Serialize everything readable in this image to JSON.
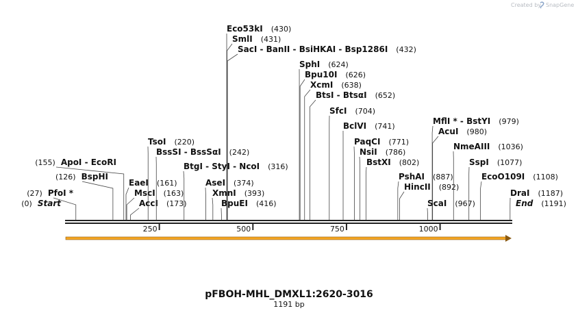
{
  "header": {
    "credit_text": "Created by",
    "brand": "SnapGene"
  },
  "map": {
    "title": "pFBOH-MHL_DMXL1:2620-3016",
    "length_text": "1191 bp",
    "total_bp": 1191,
    "ticks": [
      {
        "value": 250,
        "label": "250"
      },
      {
        "value": 500,
        "label": "500"
      },
      {
        "value": 750,
        "label": "750"
      },
      {
        "value": 1000,
        "label": "1000"
      }
    ],
    "feature": {
      "name": "orf-arrow",
      "start": 1,
      "end": 1191,
      "color": "#f5a623"
    },
    "sites": [
      {
        "name": "Start",
        "pos_label": "(0)",
        "pos": 0,
        "italic": true
      },
      {
        "name": "PfoI *",
        "pos_label": "(27)",
        "pos": 27
      },
      {
        "name": "BspHI",
        "pos_label": "(126)",
        "pos": 126
      },
      {
        "name": "ApoI  - EcoRI",
        "pos_label": "(155)",
        "pos": 155
      },
      {
        "name": "EaeI",
        "pos_label": "(161)",
        "pos": 161
      },
      {
        "name": "MscI",
        "pos_label": "(163)",
        "pos": 163
      },
      {
        "name": "AccI",
        "pos_label": "(173)",
        "pos": 173
      },
      {
        "name": "TsoI",
        "pos_label": "(220)",
        "pos": 220
      },
      {
        "name": "BssSI  - BssSαI",
        "pos_label": "(242)",
        "pos": 242
      },
      {
        "name": "BtgI  - StyI  - NcoI",
        "pos_label": "(316)",
        "pos": 316
      },
      {
        "name": "AseI",
        "pos_label": "(374)",
        "pos": 374
      },
      {
        "name": "XmnI",
        "pos_label": "(393)",
        "pos": 393
      },
      {
        "name": "BpuEI",
        "pos_label": "(416)",
        "pos": 416
      },
      {
        "name": "Eco53kI",
        "pos_label": "(430)",
        "pos": 430
      },
      {
        "name": "SmlI",
        "pos_label": "(431)",
        "pos": 431
      },
      {
        "name": "SacI  - BanII  - BsiHKAI  - Bsp1286I",
        "pos_label": "(432)",
        "pos": 432
      },
      {
        "name": "SphI",
        "pos_label": "(624)",
        "pos": 624
      },
      {
        "name": "Bpu10I",
        "pos_label": "(626)",
        "pos": 626
      },
      {
        "name": "XcmI",
        "pos_label": "(638)",
        "pos": 638
      },
      {
        "name": "BtsI  - BtsαI",
        "pos_label": "(652)",
        "pos": 652
      },
      {
        "name": "SfcI",
        "pos_label": "(704)",
        "pos": 704
      },
      {
        "name": "BclVI",
        "pos_label": "(741)",
        "pos": 741
      },
      {
        "name": "PaqCI",
        "pos_label": "(771)",
        "pos": 771
      },
      {
        "name": "NsiI",
        "pos_label": "(786)",
        "pos": 786
      },
      {
        "name": "BstXI",
        "pos_label": "(802)",
        "pos": 802
      },
      {
        "name": "PshAI",
        "pos_label": "(887)",
        "pos": 887
      },
      {
        "name": "HincII",
        "pos_label": "(892)",
        "pos": 892
      },
      {
        "name": "MflI *  - BstYI",
        "pos_label": "(979)",
        "pos": 979
      },
      {
        "name": "AcuI",
        "pos_label": "(980)",
        "pos": 980
      },
      {
        "name": "ScaI",
        "pos_label": "(967)",
        "pos": 967
      },
      {
        "name": "NmeAIII",
        "pos_label": "(1036)",
        "pos": 1036
      },
      {
        "name": "SspI",
        "pos_label": "(1077)",
        "pos": 1077
      },
      {
        "name": "EcoO109I",
        "pos_label": "(1108)",
        "pos": 1108
      },
      {
        "name": "DraI",
        "pos_label": "(1187)",
        "pos": 1187
      },
      {
        "name": "End",
        "pos_label": "(1191)",
        "pos": 1191,
        "italic": true
      }
    ]
  }
}
